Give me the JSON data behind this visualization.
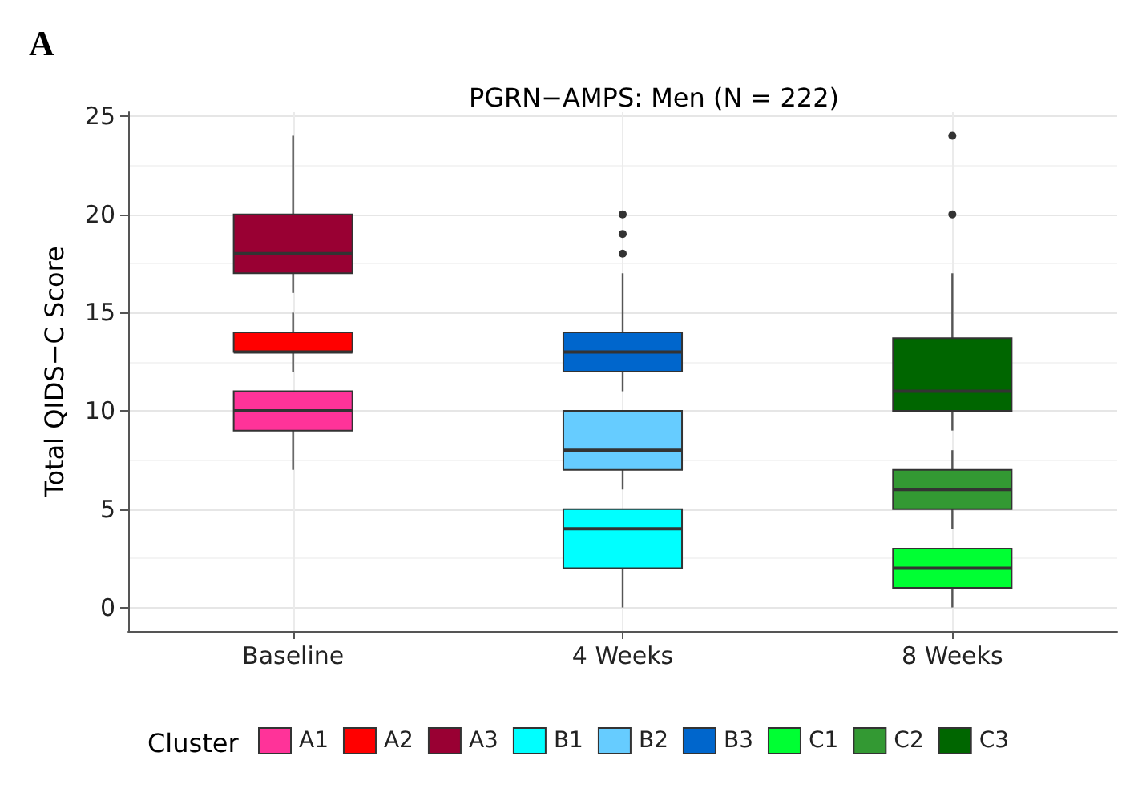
{
  "chart_data": {
    "type": "box",
    "title": "PGRN−AMPS: Men (N = 222)",
    "ylabel": "Total QIDS−C Score",
    "legend_title": "Cluster",
    "annotations": [
      "A"
    ],
    "categories": [
      "Baseline",
      "4 Weeks",
      "8 Weeks"
    ],
    "ylim": [
      -1.2,
      25.2
    ],
    "yticks": [
      0,
      5,
      10,
      15,
      20,
      25
    ],
    "grid": true,
    "legend": "bottom",
    "series": [
      {
        "name": "A1",
        "color": "#ff3399",
        "boxes": [
          {
            "low": 7,
            "q1": 9,
            "median": 10,
            "q3": 11,
            "high": 11
          },
          null,
          null
        ]
      },
      {
        "name": "A2",
        "color": "#ff0000",
        "boxes": [
          {
            "low": 12,
            "q1": 13,
            "median": 13,
            "q3": 14,
            "high": 15
          },
          null,
          null
        ]
      },
      {
        "name": "A3",
        "color": "#990033",
        "boxes": [
          {
            "low": 16,
            "q1": 17,
            "median": 18,
            "q3": 20,
            "high": 24
          },
          null,
          null
        ]
      },
      {
        "name": "B1",
        "color": "#00ffff",
        "boxes": [
          null,
          {
            "low": 0,
            "q1": 2,
            "median": 4,
            "q3": 5,
            "high": 5
          },
          null
        ]
      },
      {
        "name": "B2",
        "color": "#66ccff",
        "boxes": [
          null,
          {
            "low": 6,
            "q1": 7,
            "median": 8,
            "q3": 10,
            "high": 10
          },
          null
        ]
      },
      {
        "name": "B3",
        "color": "#0066cc",
        "boxes": [
          null,
          {
            "low": 11,
            "q1": 12,
            "median": 13,
            "q3": 14,
            "high": 17,
            "outliers": [
              18,
              19,
              20
            ]
          },
          null
        ]
      },
      {
        "name": "C1",
        "color": "#00ff33",
        "boxes": [
          null,
          null,
          {
            "low": 0,
            "q1": 1,
            "median": 2,
            "q3": 3,
            "high": 3
          }
        ]
      },
      {
        "name": "C2",
        "color": "#339933",
        "boxes": [
          null,
          null,
          {
            "low": 4,
            "q1": 5,
            "median": 6,
            "q3": 7,
            "high": 8
          }
        ]
      },
      {
        "name": "C3",
        "color": "#006600",
        "boxes": [
          null,
          null,
          {
            "low": 9,
            "q1": 10,
            "median": 11,
            "q3": 13.7,
            "high": 17,
            "outliers": [
              20,
              24
            ]
          }
        ]
      }
    ]
  }
}
